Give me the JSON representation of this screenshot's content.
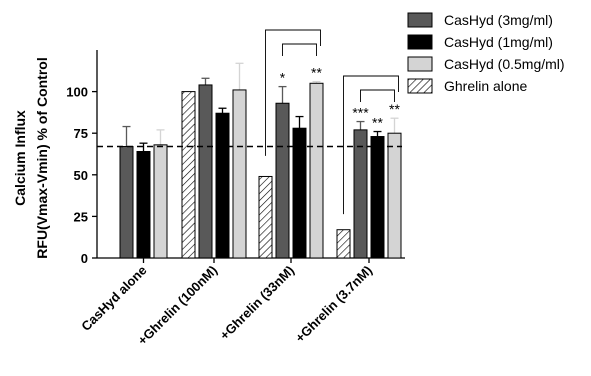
{
  "chart_data": {
    "type": "bar",
    "ylabel_line1": "Calcium Influx",
    "ylabel_line2": "RFU(Vmax-Vmin) % of Control",
    "ylim": [
      0,
      125
    ],
    "yticks": [
      0,
      25,
      50,
      75,
      100
    ],
    "reference_line": 67,
    "categories": [
      "CasHyd alone",
      "+Ghrelin (100nM)",
      "+Ghrelin (33nM)",
      "+Ghrelin (3.7nM)"
    ],
    "series": [
      {
        "name": "CasHyd (3mg/ml)",
        "color": "#595959",
        "hatch": false,
        "values": [
          67,
          104,
          93,
          77
        ],
        "errors": [
          12,
          4,
          10,
          5
        ]
      },
      {
        "name": "CasHyd (1mg/ml)",
        "color": "#000000",
        "hatch": false,
        "values": [
          64,
          87,
          78,
          73
        ],
        "errors": [
          5,
          3,
          7,
          3
        ]
      },
      {
        "name": "CasHyd (0.5mg/ml)",
        "color": "#d4d4d4",
        "hatch": false,
        "values": [
          68,
          101,
          105,
          75
        ],
        "errors": [
          9,
          16,
          1,
          9
        ]
      },
      {
        "name": "Ghrelin alone",
        "color": "#ffffff",
        "hatch": true,
        "values": [
          null,
          100,
          49,
          17
        ],
        "errors": [
          null,
          3,
          10,
          7
        ]
      }
    ],
    "significance": [
      {
        "category": 2,
        "series": 0,
        "label": "*"
      },
      {
        "category": 2,
        "series": 2,
        "label": "**"
      },
      {
        "category": 3,
        "series": 0,
        "label": "***"
      },
      {
        "category": 3,
        "series": 1,
        "label": "**"
      },
      {
        "category": 3,
        "series": 2,
        "label": "**"
      }
    ],
    "legend_position": "top-right",
    "grid": false
  }
}
